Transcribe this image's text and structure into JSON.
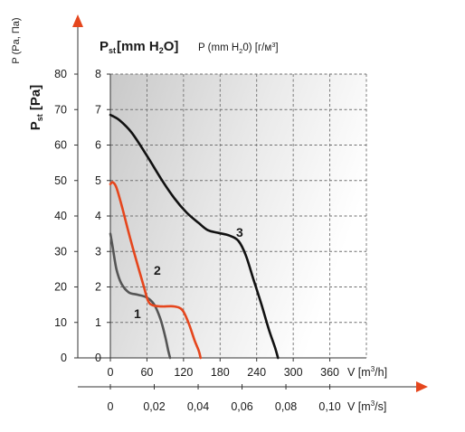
{
  "chart_data": {
    "type": "line",
    "title_main": "[mm H",
    "title_main_sym": "P",
    "title_main_sub": "st",
    "title_main_sub2": "2",
    "title_main_end": "O]",
    "title_secondary": "P (mm H",
    "title_secondary_sub": "2",
    "title_secondary_end": "0) [г/м",
    "title_secondary_sup": "3",
    "title_secondary_close": "]",
    "y_label_left": "P (Pa, Па)",
    "y_label_bold_sym": "P",
    "y_label_bold_sub": "st",
    "y_label_bold_unit": " [Pa]",
    "y_pa_ticks": [
      "0",
      "10",
      "20",
      "30",
      "40",
      "50",
      "60",
      "70",
      "80"
    ],
    "y_mm_ticks": [
      "0",
      "1",
      "2",
      "3",
      "4",
      "5",
      "6",
      "7",
      "8"
    ],
    "x_m3h_ticks": [
      "0",
      "60",
      "120",
      "180",
      "240",
      "300",
      "360"
    ],
    "x_m3h_label": "V [m",
    "x_m3h_sup": "3",
    "x_m3h_end": "/h]",
    "x_m3s_ticks": [
      "0",
      "0,02",
      "0,04",
      "0,06",
      "0,08",
      "0,10"
    ],
    "x_m3s_label": "V [m",
    "x_m3s_sup": "3",
    "x_m3s_end": "/s]",
    "xlim": [
      0,
      420
    ],
    "ylim": [
      0,
      80
    ],
    "grid": true,
    "series": [
      {
        "name": "1",
        "color": "#555555",
        "points": [
          [
            0,
            35
          ],
          [
            4,
            31
          ],
          [
            10,
            25
          ],
          [
            18,
            21
          ],
          [
            30,
            18.5
          ],
          [
            45,
            17.8
          ],
          [
            60,
            17
          ],
          [
            72,
            15
          ],
          [
            82,
            11
          ],
          [
            90,
            6
          ],
          [
            95,
            2
          ],
          [
            98,
            0
          ]
        ]
      },
      {
        "name": "2",
        "color": "#e5461d",
        "points": [
          [
            0,
            49
          ],
          [
            4,
            49.5
          ],
          [
            10,
            48
          ],
          [
            20,
            42
          ],
          [
            32,
            34
          ],
          [
            45,
            26
          ],
          [
            55,
            20
          ],
          [
            62,
            16
          ],
          [
            70,
            14.8
          ],
          [
            85,
            14.5
          ],
          [
            105,
            14.5
          ],
          [
            118,
            13.5
          ],
          [
            128,
            10
          ],
          [
            138,
            5
          ],
          [
            145,
            2
          ],
          [
            148,
            0
          ]
        ]
      },
      {
        "name": "3",
        "color": "#111111",
        "points": [
          [
            0,
            68.5
          ],
          [
            15,
            67
          ],
          [
            35,
            63.5
          ],
          [
            60,
            57
          ],
          [
            85,
            50
          ],
          [
            105,
            45
          ],
          [
            125,
            41
          ],
          [
            145,
            38
          ],
          [
            160,
            36
          ],
          [
            178,
            35.2
          ],
          [
            195,
            34.5
          ],
          [
            210,
            33
          ],
          [
            222,
            29
          ],
          [
            235,
            22
          ],
          [
            248,
            15
          ],
          [
            260,
            8
          ],
          [
            270,
            3
          ],
          [
            275,
            0
          ]
        ]
      }
    ]
  }
}
